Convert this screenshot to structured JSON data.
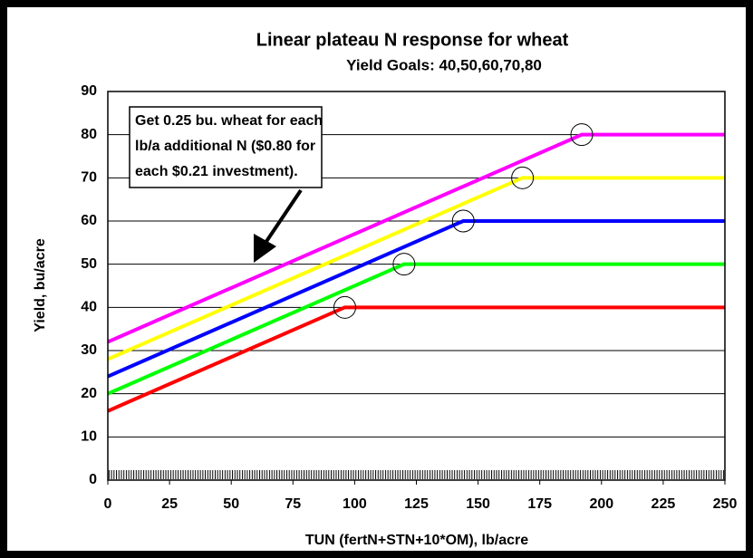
{
  "chart_data": {
    "type": "line",
    "title": "Linear plateau N response for wheat",
    "subtitle": "Yield Goals: 40,50,60,70,80",
    "x_label": "TUN (fertN+STN+10*OM), lb/acre",
    "y_label": "Yield, bu/acre",
    "annotation": [
      "Get 0.25 bu. wheat for each",
      "lb/a additional N ($0.80 for",
      "each $0.21 investment)."
    ],
    "xlim": [
      0,
      250
    ],
    "ylim": [
      0,
      90
    ],
    "xticks": [
      0,
      25,
      50,
      75,
      100,
      125,
      150,
      175,
      200,
      225,
      250
    ],
    "yticks": [
      0,
      10,
      20,
      30,
      40,
      50,
      60,
      70,
      80,
      90
    ],
    "grid": true,
    "series": [
      {
        "name": "40",
        "color": "#ff0000",
        "x": [
          0,
          96,
          250
        ],
        "values": [
          16,
          40,
          40
        ]
      },
      {
        "name": "50",
        "color": "#00ff00",
        "x": [
          0,
          120,
          250
        ],
        "values": [
          20,
          50,
          50
        ]
      },
      {
        "name": "60",
        "color": "#0000ff",
        "x": [
          0,
          144,
          250
        ],
        "values": [
          24,
          60,
          60
        ]
      },
      {
        "name": "70",
        "color": "#ffff00",
        "x": [
          0,
          168,
          250
        ],
        "values": [
          28,
          70,
          70
        ]
      },
      {
        "name": "80",
        "color": "#ff00ff",
        "x": [
          0,
          192,
          250
        ],
        "values": [
          32,
          80,
          80
        ]
      }
    ]
  }
}
